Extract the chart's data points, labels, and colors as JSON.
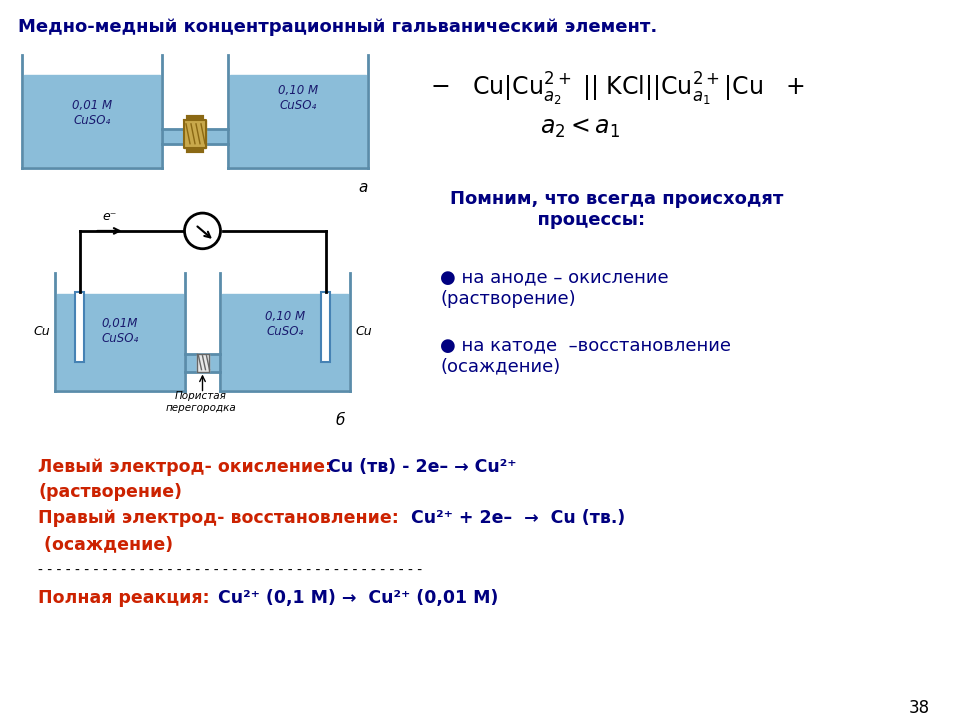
{
  "title": "Медно-медный концентрационный гальванический элемент.",
  "title_color": "#000080",
  "bg_color": "#ffffff",
  "title_fontsize": 13,
  "left_conc_a": "0,01 М\nCuSO₄",
  "right_conc_a": "0,10 М\nCuSO₄",
  "left_conc_b": "0,01М\nCuSO₄",
  "right_conc_b": "0,10 М\nCuSO₄",
  "label_a": "a",
  "label_b": "б",
  "label_porous": "Пористая\nперегородка",
  "label_cu": "Cu",
  "label_eminus": "e⁻",
  "solution_color": "#8BBDD9",
  "vessel_edge_color": "#5A8CAA",
  "page_num": "38"
}
